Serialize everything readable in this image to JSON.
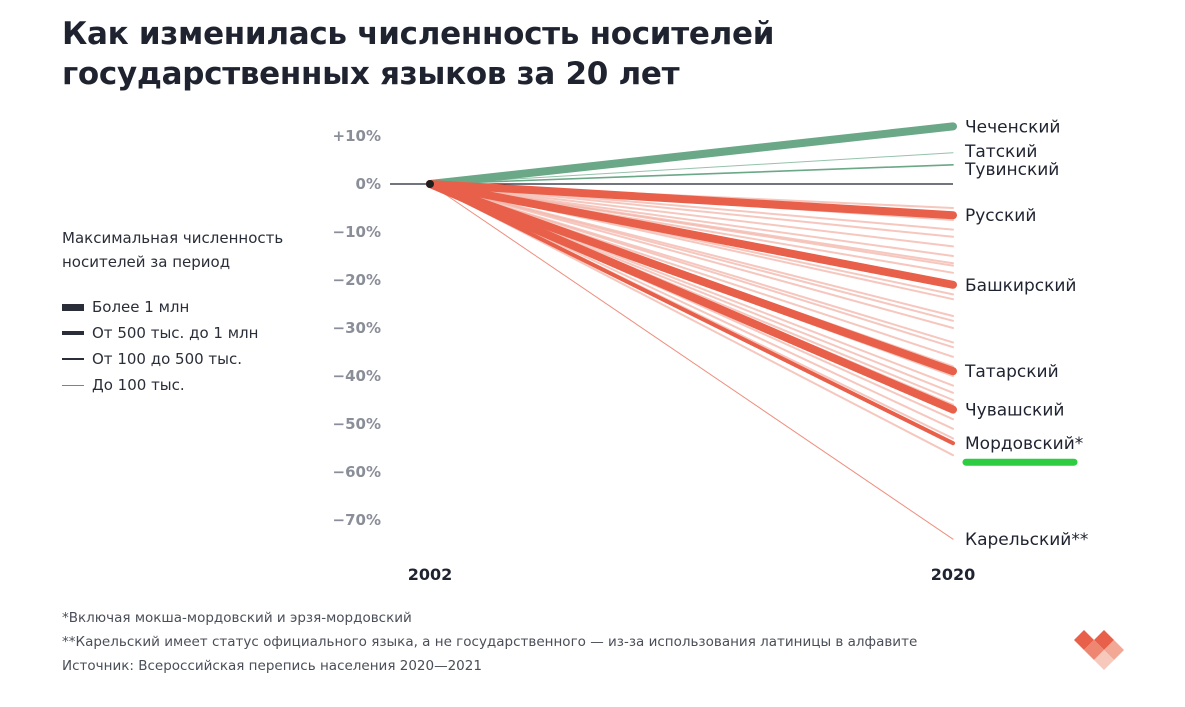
{
  "title": "Как изменилась численность носителей государственных языков за 20 лет",
  "legend": {
    "caption": "Максимальная численность носителей за период",
    "items": [
      {
        "label": "Более 1 млн",
        "tier": 4
      },
      {
        "label": "От 500 тыс. до 1 млн",
        "tier": 3
      },
      {
        "label": "От 100 до 500 тыс.",
        "tier": 2
      },
      {
        "label": "До 100 тыс.",
        "tier": 1
      }
    ]
  },
  "colors": {
    "growth": "#6aa887",
    "decline": "#e8604a",
    "decline_light": "#f3b4a8",
    "axis_text": "#8a8e98",
    "zero_line": "#1f2330",
    "highlight": "#2ecc40"
  },
  "chart_data": {
    "type": "line",
    "x": [
      "2002",
      "2020"
    ],
    "y_ticks": [
      "+10%",
      "0%",
      "−10%",
      "−20%",
      "−30%",
      "−40%",
      "−50%",
      "−60%",
      "−70%"
    ],
    "ylim": [
      -75,
      12
    ],
    "labeled_series": [
      {
        "name": "Чеченский",
        "change": 12,
        "tier": 4,
        "trend": "growth"
      },
      {
        "name": "Татский",
        "change": 6.5,
        "tier": 1,
        "trend": "growth"
      },
      {
        "name": "Тувинский",
        "change": 4,
        "tier": 2,
        "trend": "growth"
      },
      {
        "name": "Русский",
        "change": -6.5,
        "tier": 4,
        "trend": "decline"
      },
      {
        "name": "Башкирский",
        "change": -21,
        "tier": 4,
        "trend": "decline"
      },
      {
        "name": "Татарский",
        "change": -39,
        "tier": 4,
        "trend": "decline"
      },
      {
        "name": "Чувашский",
        "change": -47,
        "tier": 4,
        "trend": "decline"
      },
      {
        "name": "Мордовский*",
        "change": -54,
        "tier": 3,
        "trend": "decline",
        "highlighted": true
      },
      {
        "name": "Карельский**",
        "change": -74,
        "tier": 1,
        "trend": "decline"
      }
    ],
    "unlabeled_changes": [
      -5,
      -7.5,
      -9.5,
      -11,
      -13,
      -15,
      -16.5,
      -17,
      -18.5,
      -23,
      -24,
      -27.5,
      -28.5,
      -30,
      -33,
      -34,
      -36,
      -38,
      -40,
      -42,
      -43.5,
      -45,
      -46,
      -49,
      -51,
      -53,
      -56.5
    ]
  },
  "footnotes": [
    "*Включая мокша-мордовский и эрзя-мордовский",
    "**Карельский имеет статус официального языка, а не государственного — из-за использования латиницы в алфавите",
    "Источник: Всероссийская перепись населения 2020—2021"
  ]
}
